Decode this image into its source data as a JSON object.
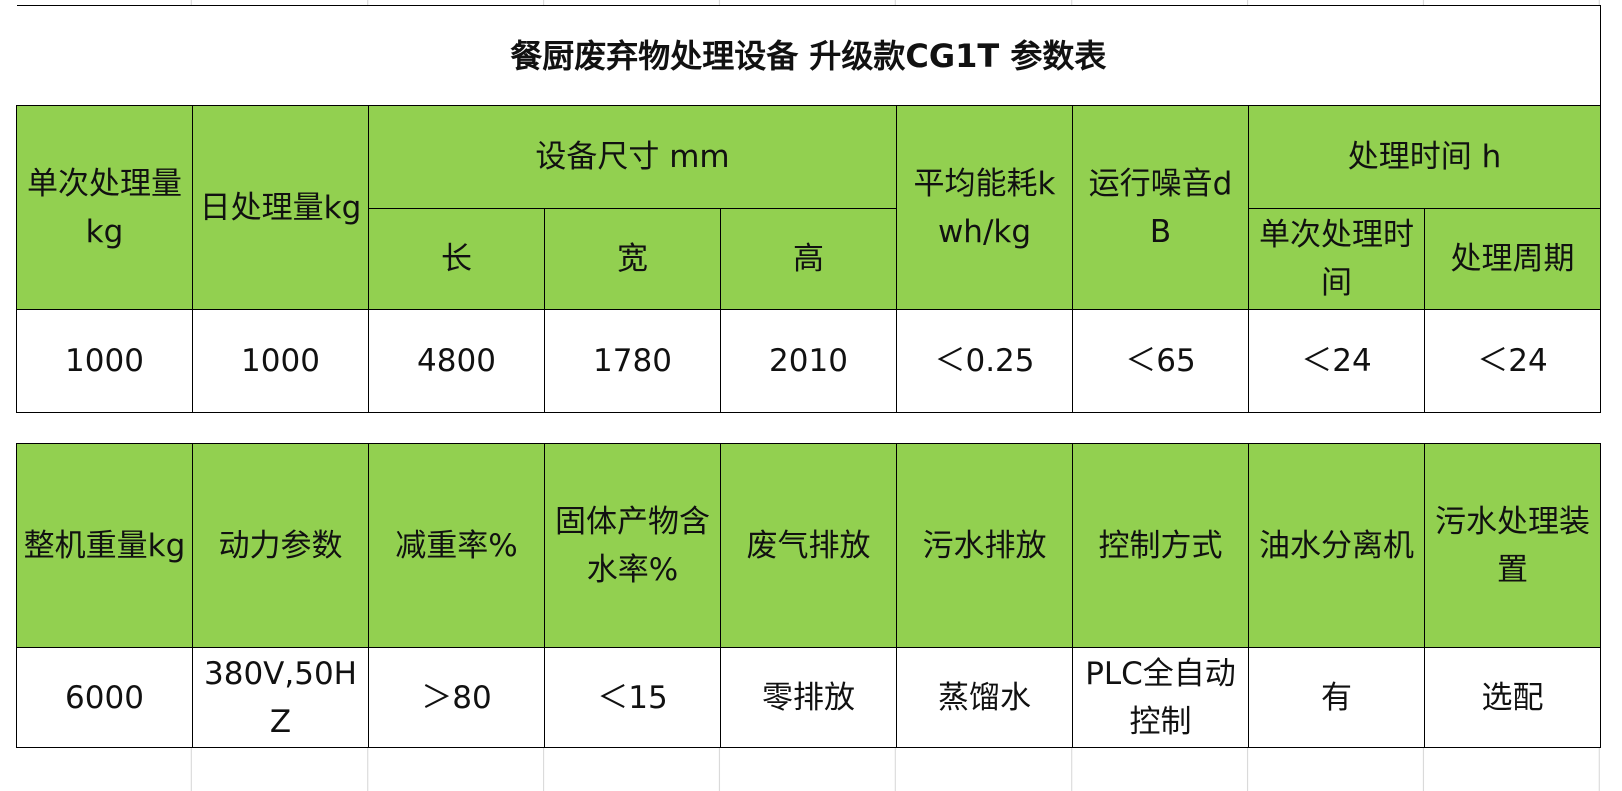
{
  "title": "餐厨废弃物处理设备 升级款CG1T 参数表",
  "table1": {
    "header_row_1": [
      "单次处理量kg",
      "日处理量kg",
      "设备尺寸 mm",
      "平均能耗kwh/kg",
      "运行噪音dB",
      "处理时间 h"
    ],
    "header_row_2": [
      "长",
      "宽",
      "高",
      "单次处理时间",
      "处理周期"
    ],
    "row": [
      "1000",
      "1000",
      "4800",
      "1780",
      "2010",
      "＜0.25",
      "＜65",
      "＜24",
      "＜24"
    ]
  },
  "table2": {
    "header": [
      "整机重量kg",
      "动力参数",
      "减重率%",
      "固体产物含水率%",
      "废气排放",
      "污水排放",
      "控制方式",
      "油水分离机",
      "污水处理装置"
    ],
    "row": [
      "6000",
      "380V,50HZ",
      "＞80",
      "＜15",
      "零排放",
      "蒸馏水",
      "PLC全自动控制",
      "有",
      "选配"
    ]
  }
}
